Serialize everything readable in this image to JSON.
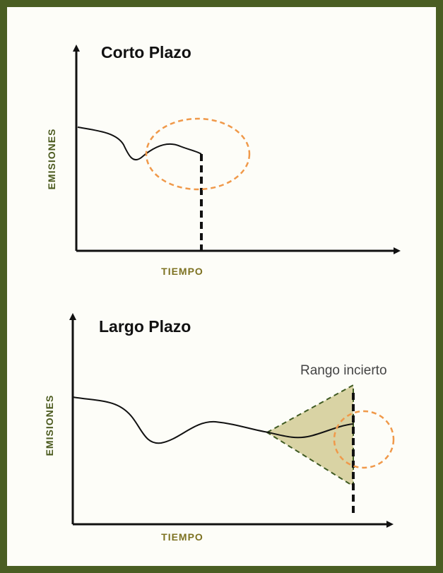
{
  "panels": [
    {
      "title": "Corto Plazo",
      "y_label": "EMISIONES",
      "x_label": "TIEMPO"
    },
    {
      "title": "Largo Plazo",
      "y_label": "EMISIONES",
      "x_label": "TIEMPO",
      "annotation": "Rango incierto"
    }
  ]
}
